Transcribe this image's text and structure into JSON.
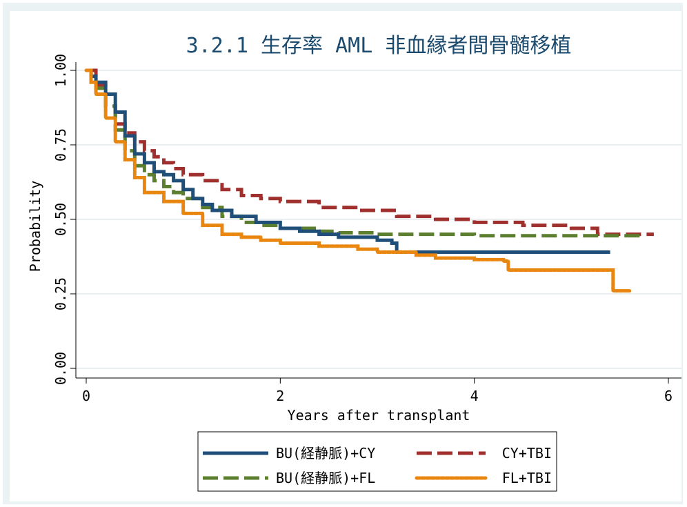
{
  "chart_data": {
    "type": "line",
    "title": "3.2.1 生存率 AML 非血縁者間骨髄移植",
    "xlabel": "Years after transplant",
    "ylabel": "Probability",
    "xlim": [
      0,
      6
    ],
    "ylim": [
      0,
      1
    ],
    "xticks": [
      "0",
      "2",
      "4",
      "6"
    ],
    "yticks": [
      "0.00",
      "0.25",
      "0.50",
      "0.75",
      "1.00"
    ],
    "grid": true,
    "legend_placement": "bottom",
    "series": [
      {
        "name": "BU(経静脈)+CY",
        "color": "#1f4e79",
        "dash": "solid",
        "points": [
          [
            0,
            1.0
          ],
          [
            0.05,
            0.98
          ],
          [
            0.1,
            0.96
          ],
          [
            0.2,
            0.92
          ],
          [
            0.3,
            0.86
          ],
          [
            0.4,
            0.78
          ],
          [
            0.5,
            0.72
          ],
          [
            0.6,
            0.69
          ],
          [
            0.7,
            0.66
          ],
          [
            0.8,
            0.65
          ],
          [
            0.9,
            0.63
          ],
          [
            1.0,
            0.6
          ],
          [
            1.1,
            0.57
          ],
          [
            1.2,
            0.55
          ],
          [
            1.3,
            0.53
          ],
          [
            1.5,
            0.51
          ],
          [
            1.75,
            0.49
          ],
          [
            2.0,
            0.47
          ],
          [
            2.2,
            0.46
          ],
          [
            2.4,
            0.45
          ],
          [
            2.6,
            0.44
          ],
          [
            3.0,
            0.43
          ],
          [
            3.15,
            0.42
          ],
          [
            3.2,
            0.39
          ],
          [
            4.0,
            0.39
          ],
          [
            5.0,
            0.39
          ],
          [
            5.4,
            0.39
          ]
        ]
      },
      {
        "name": "CY+TBI",
        "color": "#a0302e",
        "dash": "long-dash",
        "points": [
          [
            0,
            1.0
          ],
          [
            0.1,
            0.95
          ],
          [
            0.2,
            0.88
          ],
          [
            0.3,
            0.82
          ],
          [
            0.4,
            0.79
          ],
          [
            0.5,
            0.76
          ],
          [
            0.6,
            0.73
          ],
          [
            0.7,
            0.71
          ],
          [
            0.8,
            0.69
          ],
          [
            0.9,
            0.67
          ],
          [
            1.0,
            0.65
          ],
          [
            1.2,
            0.63
          ],
          [
            1.4,
            0.6
          ],
          [
            1.6,
            0.58
          ],
          [
            1.8,
            0.57
          ],
          [
            2.0,
            0.56
          ],
          [
            2.4,
            0.54
          ],
          [
            2.8,
            0.53
          ],
          [
            3.2,
            0.51
          ],
          [
            3.6,
            0.5
          ],
          [
            4.0,
            0.49
          ],
          [
            4.5,
            0.48
          ],
          [
            5.0,
            0.47
          ],
          [
            5.2,
            0.47
          ],
          [
            5.27,
            0.45
          ],
          [
            5.85,
            0.45
          ]
        ]
      },
      {
        "name": "BU(経静脈)+FL",
        "color": "#5b7f2f",
        "dash": "long-dash",
        "points": [
          [
            0,
            1.0
          ],
          [
            0.05,
            0.97
          ],
          [
            0.1,
            0.94
          ],
          [
            0.2,
            0.88
          ],
          [
            0.3,
            0.8
          ],
          [
            0.4,
            0.73
          ],
          [
            0.5,
            0.68
          ],
          [
            0.6,
            0.65
          ],
          [
            0.7,
            0.63
          ],
          [
            0.8,
            0.61
          ],
          [
            0.9,
            0.59
          ],
          [
            1.0,
            0.57
          ],
          [
            1.2,
            0.54
          ],
          [
            1.4,
            0.51
          ],
          [
            1.6,
            0.49
          ],
          [
            1.8,
            0.48
          ],
          [
            2.0,
            0.47
          ],
          [
            2.4,
            0.46
          ],
          [
            2.6,
            0.455
          ],
          [
            3.0,
            0.45
          ],
          [
            4.0,
            0.445
          ],
          [
            5.0,
            0.445
          ],
          [
            5.75,
            0.445
          ]
        ]
      },
      {
        "name": "FL+TBI",
        "color": "#e8860f",
        "dash": "dotted",
        "points": [
          [
            0,
            1.0
          ],
          [
            0.05,
            0.96
          ],
          [
            0.1,
            0.92
          ],
          [
            0.2,
            0.84
          ],
          [
            0.3,
            0.76
          ],
          [
            0.4,
            0.7
          ],
          [
            0.5,
            0.64
          ],
          [
            0.6,
            0.59
          ],
          [
            0.8,
            0.56
          ],
          [
            1.0,
            0.52
          ],
          [
            1.2,
            0.48
          ],
          [
            1.4,
            0.45
          ],
          [
            1.6,
            0.44
          ],
          [
            1.8,
            0.43
          ],
          [
            2.0,
            0.42
          ],
          [
            2.4,
            0.41
          ],
          [
            2.8,
            0.4
          ],
          [
            3.0,
            0.39
          ],
          [
            3.4,
            0.38
          ],
          [
            3.6,
            0.37
          ],
          [
            4.0,
            0.365
          ],
          [
            4.3,
            0.36
          ],
          [
            4.35,
            0.33
          ],
          [
            5.4,
            0.33
          ],
          [
            5.43,
            0.26
          ],
          [
            5.6,
            0.26
          ]
        ]
      }
    ]
  }
}
